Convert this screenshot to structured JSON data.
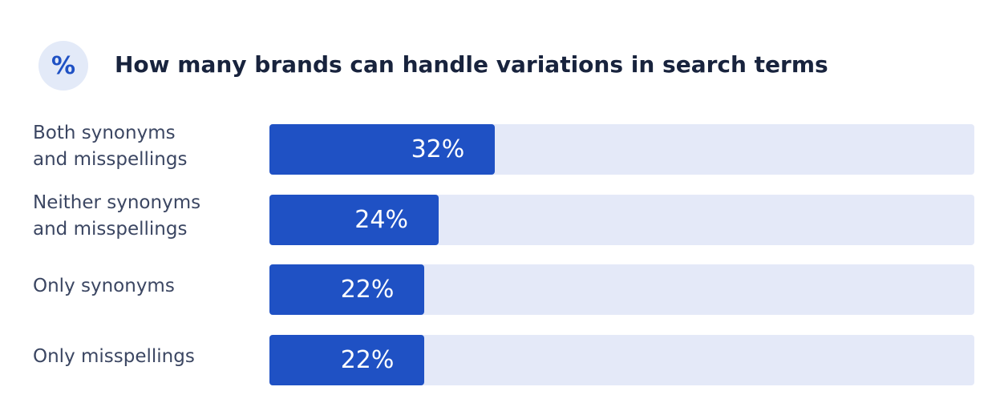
{
  "chart_data": {
    "type": "bar",
    "orientation": "horizontal",
    "icon": "%",
    "title": "How many brands can handle variations in search terms",
    "categories": [
      "Both synonyms and misspellings",
      "Neither synonyms and misspellings",
      "Only synonyms",
      "Only misspellings"
    ],
    "values": [
      32,
      24,
      22,
      22
    ],
    "value_labels": [
      "32%",
      "24%",
      "22%",
      "22%"
    ],
    "color": "#1f51c4",
    "xlim": [
      0,
      100
    ]
  }
}
